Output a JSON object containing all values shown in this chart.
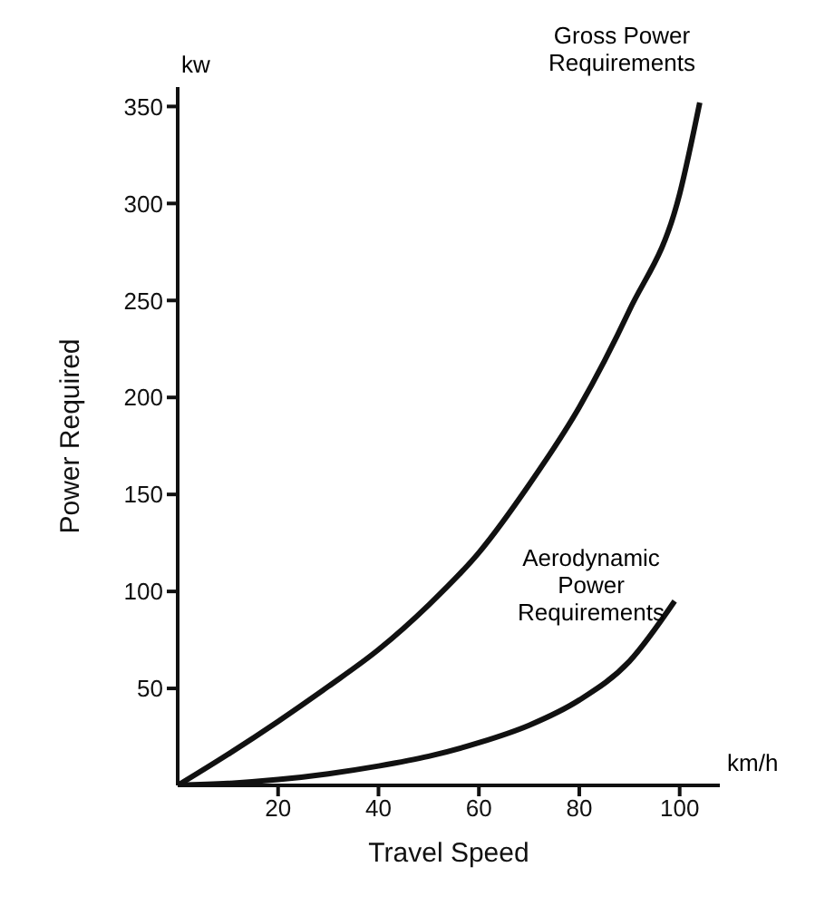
{
  "chart_data": {
    "type": "line",
    "xlabel": "Travel Speed",
    "ylabel": "Power Required",
    "xlim": [
      0,
      108
    ],
    "ylim": [
      0,
      360
    ],
    "xticks": [
      20,
      40,
      60,
      80,
      100
    ],
    "yticks": [
      50,
      100,
      150,
      200,
      250,
      300,
      350
    ],
    "marker": "none",
    "line_style": "solid",
    "series": [
      {
        "color": "#111111",
        "x": [
          0,
          10,
          20,
          30,
          40,
          50,
          60,
          70,
          80,
          90,
          100,
          104
        ],
        "values": [
          0,
          16,
          33,
          51,
          70,
          93,
          120,
          155,
          195,
          245,
          305,
          352
        ]
      },
      {
        "color": "#111111",
        "x": [
          0,
          10,
          20,
          30,
          40,
          50,
          60,
          70,
          80,
          90,
          99
        ],
        "values": [
          0,
          1,
          3,
          6,
          10,
          15,
          22,
          31,
          44,
          64,
          95
        ]
      }
    ],
    "annotations": [
      "Gross Power Requirements",
      "Aerodynamic Power Requirements",
      "kw",
      "km/h"
    ]
  }
}
